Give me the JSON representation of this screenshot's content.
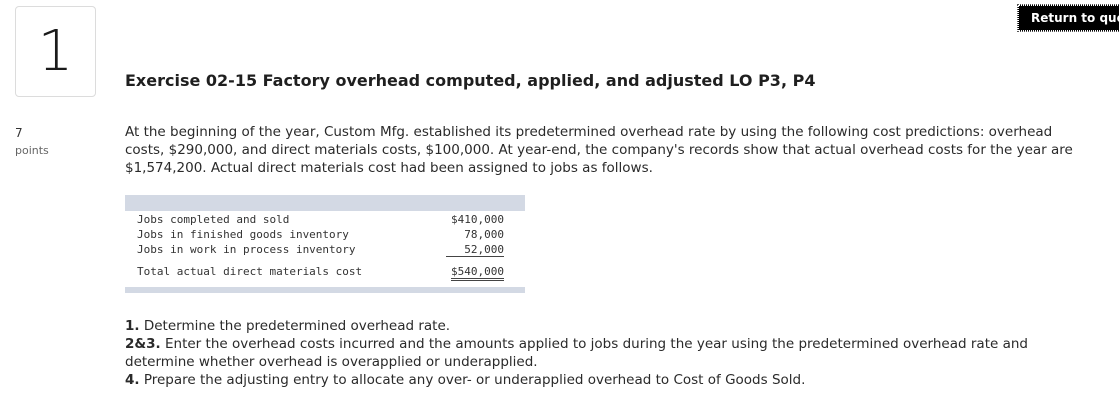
{
  "question": {
    "number": "1",
    "points_value": "7",
    "points_label": "points"
  },
  "return_button": {
    "label": "Return to question"
  },
  "exercise": {
    "title": "Exercise 02-15 Factory overhead computed, applied, and adjusted LO P3, P4",
    "intro": "At the beginning of the year, Custom Mfg. established its predetermined overhead rate by using the following cost predictions: overhead costs, $290,000, and direct materials costs, $100,000. At year-end, the company's records show that actual overhead costs for the year are $1,574,200. Actual direct materials cost had been assigned to jobs as follows."
  },
  "cost_table": {
    "rows": [
      {
        "label": "Jobs completed and sold",
        "amount": "$410,000"
      },
      {
        "label": "Jobs in finished goods inventory",
        "amount": "78,000"
      },
      {
        "label": "Jobs in work in process inventory",
        "amount": "52,000"
      }
    ],
    "total": {
      "label": "Total actual direct materials cost",
      "amount": "$540,000"
    }
  },
  "instructions": [
    {
      "num": "1.",
      "text": "Determine the predetermined overhead rate."
    },
    {
      "num": "2&3.",
      "text": "Enter the overhead costs incurred and the amounts applied to jobs during the year using the predetermined overhead rate and determine whether overhead is overapplied or underapplied."
    },
    {
      "num": "4.",
      "text": "Prepare the adjusting entry to allocate any over- or underapplied overhead to Cost of Goods Sold."
    }
  ]
}
